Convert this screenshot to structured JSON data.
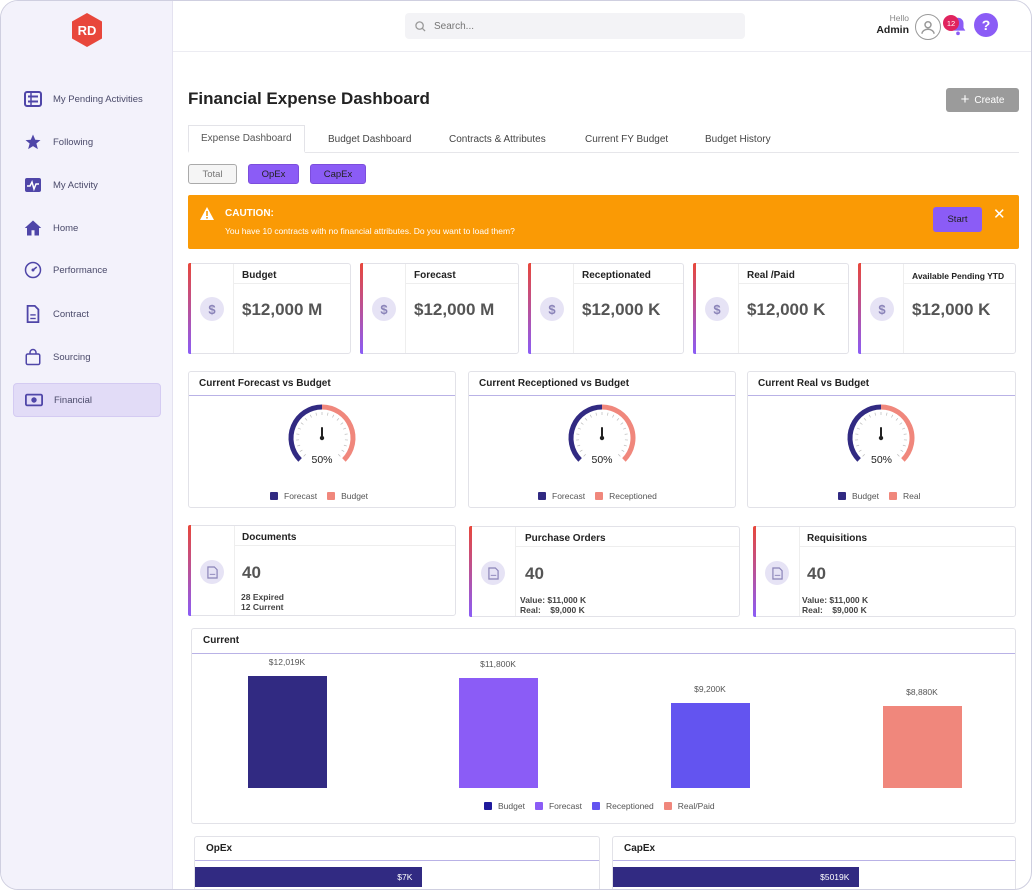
{
  "app": {
    "logo_text": "RD"
  },
  "sidebar": {
    "items": [
      {
        "label": "My Pending Activities",
        "icon": "list-icon"
      },
      {
        "label": "Following",
        "icon": "star-icon"
      },
      {
        "label": "My Activity",
        "icon": "activity-icon"
      },
      {
        "label": "Home",
        "icon": "home-icon"
      },
      {
        "label": "Performance",
        "icon": "gauge-icon"
      },
      {
        "label": "Contract",
        "icon": "document-icon"
      },
      {
        "label": "Sourcing",
        "icon": "bag-icon"
      },
      {
        "label": "Financial",
        "icon": "money-icon",
        "active": true
      }
    ]
  },
  "header": {
    "search_placeholder": "Search...",
    "greeting": "Hello",
    "user": "Admin",
    "notifications": "12",
    "help": "?"
  },
  "page": {
    "title": "Financial Expense Dashboard",
    "create_label": "Create"
  },
  "tabs": [
    {
      "label": "Expense Dashboard",
      "active": true
    },
    {
      "label": "Budget Dashboard"
    },
    {
      "label": "Contracts & Attributes"
    },
    {
      "label": "Current FY Budget"
    },
    {
      "label": "Budget History"
    }
  ],
  "filters": {
    "total": "Total",
    "opex": "OpEx",
    "capex": "CapEx"
  },
  "caution": {
    "title": "CAUTION:",
    "message": "You have 10 contracts with no financial attributes. Do you want to load them?",
    "start_label": "Start",
    "close": "✕"
  },
  "kpis": [
    {
      "title": "Budget",
      "value": "$12,000 M"
    },
    {
      "title": "Forecast",
      "value": "$12,000 M"
    },
    {
      "title": "Receptionated",
      "value": "$12,000 K"
    },
    {
      "title": "Real /Paid",
      "value": "$12,000 K"
    },
    {
      "title": "Available Pending YTD",
      "value": "$12,000 K"
    }
  ],
  "gauges": [
    {
      "title": "Current Forecast vs Budget",
      "percent": "50%",
      "value": 0.5,
      "legend": [
        "Forecast",
        "Budget"
      ]
    },
    {
      "title": "Current Receptioned vs Budget",
      "percent": "50%",
      "value": 0.5,
      "legend": [
        "Forecast",
        "Receptioned"
      ]
    },
    {
      "title": "Current Real vs Budget",
      "percent": "50%",
      "value": 0.5,
      "legend": [
        "Budget",
        "Real"
      ]
    }
  ],
  "docs": [
    {
      "title": "Documents",
      "value": "40",
      "line1": "28 Expired",
      "line2": "12  Current"
    },
    {
      "title": "Purchase Orders",
      "value": "40",
      "line1": "Value: $11,000 K",
      "line2": "Real:    $9,000 K"
    },
    {
      "title": "Requisitions",
      "value": "40",
      "line1": "Value: $11,000 K",
      "line2": "Real:    $9,000 K"
    }
  ],
  "colors": {
    "accent": "#8b5cf6",
    "navy": "#312a82",
    "violet": "#8b5cf6",
    "blue": "#6354f0",
    "salmon": "#f0877c",
    "caution": "#fa9a05"
  },
  "chart_data": [
    {
      "type": "bar",
      "title": "Current",
      "categories": [
        "Budget",
        "Forecast",
        "Receptioned",
        "Real/Paid"
      ],
      "values": [
        12019,
        11800,
        9200,
        8880
      ],
      "labels": [
        "$12,019K",
        "$11,800K",
        "$9,200K",
        "$8,880K"
      ],
      "colors": [
        "#312a82",
        "#8b5cf6",
        "#6354f0",
        "#f0877c"
      ],
      "legend": [
        "Budget",
        "Forecast",
        "Receptioned",
        "Real/Paid"
      ],
      "ylim": [
        0,
        14000
      ]
    },
    {
      "type": "bar",
      "title": "OpEx",
      "values": [
        7
      ],
      "labels": [
        "$7K"
      ],
      "fill_fraction": 0.56
    },
    {
      "type": "bar",
      "title": "CapEx",
      "values": [
        5019
      ],
      "labels": [
        "$5019K"
      ],
      "fill_fraction": 0.61
    }
  ]
}
